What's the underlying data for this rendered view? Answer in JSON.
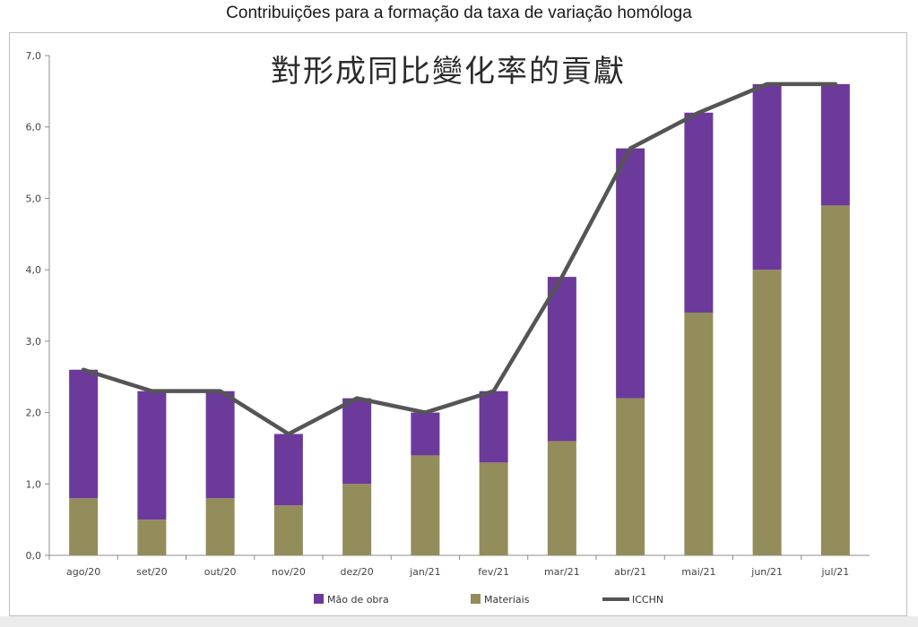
{
  "chart_data": {
    "type": "bar",
    "title": "Contribuições para a formação da taxa de variação homóloga",
    "subtitle": "對形成同比變化率的貢獻",
    "xlabel": "",
    "ylabel": "",
    "ylim": [
      0,
      7
    ],
    "yticks": [
      "0,0",
      "1,0",
      "2,0",
      "3,0",
      "4,0",
      "5,0",
      "6,0",
      "7,0"
    ],
    "categories": [
      "ago/20",
      "set/20",
      "out/20",
      "nov/20",
      "dez/20",
      "jan/21",
      "fev/21",
      "mar/21",
      "abr/21",
      "mai/21",
      "jun/21",
      "jul/21"
    ],
    "stacked": true,
    "series": [
      {
        "name": "Materiais",
        "kind": "bar",
        "color": "#938d5c",
        "values": [
          0.8,
          0.5,
          0.8,
          0.7,
          1.0,
          1.4,
          1.3,
          1.6,
          2.2,
          3.4,
          4.0,
          4.9
        ]
      },
      {
        "name": "Mão de obra",
        "kind": "bar",
        "color": "#6c3a9b",
        "values": [
          1.8,
          1.8,
          1.5,
          1.0,
          1.2,
          0.6,
          1.0,
          2.3,
          3.5,
          2.8,
          2.6,
          1.7
        ]
      },
      {
        "name": "ICCHN",
        "kind": "line",
        "color": "#555555",
        "values": [
          2.6,
          2.3,
          2.3,
          1.7,
          2.2,
          2.0,
          2.3,
          3.9,
          5.7,
          6.2,
          6.6,
          6.6
        ]
      }
    ],
    "legend_order": [
      "Mão de obra",
      "Materiais",
      "ICCHN"
    ],
    "legend_position": "bottom",
    "grid": false
  }
}
